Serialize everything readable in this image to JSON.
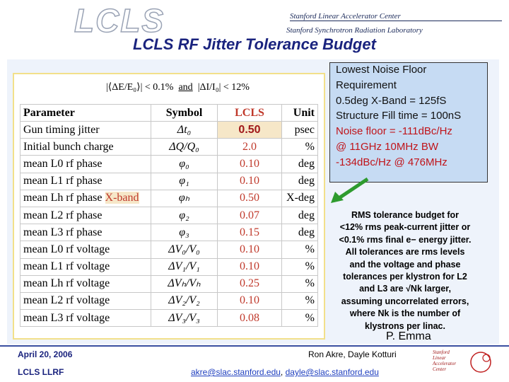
{
  "header": {
    "logo": "LCLS",
    "org1": "Stanford Linear Accelerator Center",
    "org2": "Stanford Synchrotron Radiation Laboratory"
  },
  "title": "LCLS RF Jitter Tolerance Budget",
  "formula": {
    "left": "|⟨ΔE/E₀⟩| < 0.1%",
    "conj": "and",
    "right": "|ΔI/I₀| < 12%"
  },
  "table": {
    "columns": [
      "Parameter",
      "Symbol",
      "LCLS",
      "Unit"
    ],
    "rows": [
      [
        "Gun timing jitter",
        "Δt₀",
        "0.50",
        "psec"
      ],
      [
        "Initial bunch charge",
        "ΔQ/Q₀",
        "2.0",
        "%"
      ],
      [
        "mean L0 rf phase",
        "φ₀",
        "0.10",
        "deg"
      ],
      [
        "mean L1 rf phase",
        "φ₁",
        "0.10",
        "deg"
      ],
      [
        "mean Lh rf phase",
        "φₕ",
        "0.50",
        "X-deg"
      ],
      [
        "mean L2 rf phase",
        "φ₂",
        "0.07",
        "deg"
      ],
      [
        "mean L3 rf phase",
        "φ₃",
        "0.15",
        "deg"
      ],
      [
        "mean L0 rf voltage",
        "ΔV₀/V₀",
        "0.10",
        "%"
      ],
      [
        "mean L1 rf voltage",
        "ΔV₁/V₁",
        "0.10",
        "%"
      ],
      [
        "mean Lh rf voltage",
        "ΔVₕ/Vₕ",
        "0.25",
        "%"
      ],
      [
        "mean L2 rf voltage",
        "ΔV₂/V₂",
        "0.10",
        "%"
      ],
      [
        "mean L3 rf voltage",
        "ΔV₃/V₃",
        "0.08",
        "%"
      ]
    ],
    "xband_tag": "X-band"
  },
  "noise_box": {
    "lines": [
      "Lowest Noise Floor",
      "Requirement",
      "0.5deg X-Band = 125fS",
      "Structure Fill time = 100nS",
      "Noise floor = -111dBc/Hz",
      "@ 11GHz  10MHz BW",
      "-134dBc/Hz @ 476MHz"
    ]
  },
  "note": {
    "lines": [
      "RMS tolerance budget for",
      "<12% rms peak-current jitter or",
      "<0.1% rms final e− energy jitter.",
      "All tolerances are rms levels",
      "and the voltage and phase",
      "tolerances per klystron for L2",
      "and L3 are √Nk larger,",
      "assuming uncorrelated errors,",
      "where Nk is the number of",
      "klystrons per linac."
    ]
  },
  "author": "P. Emma",
  "footer": {
    "date": "April 20, 2006",
    "project": "LCLS LLRF",
    "names": "Ron Akre, Dayle Kotturi",
    "email1": "akre@slac.stanford.edu",
    "separator": ",",
    "email2": "dayle@slac.stanford.edu"
  },
  "footer_logo": [
    "Stanford",
    "Linear",
    "Accelerator",
    "Center"
  ]
}
